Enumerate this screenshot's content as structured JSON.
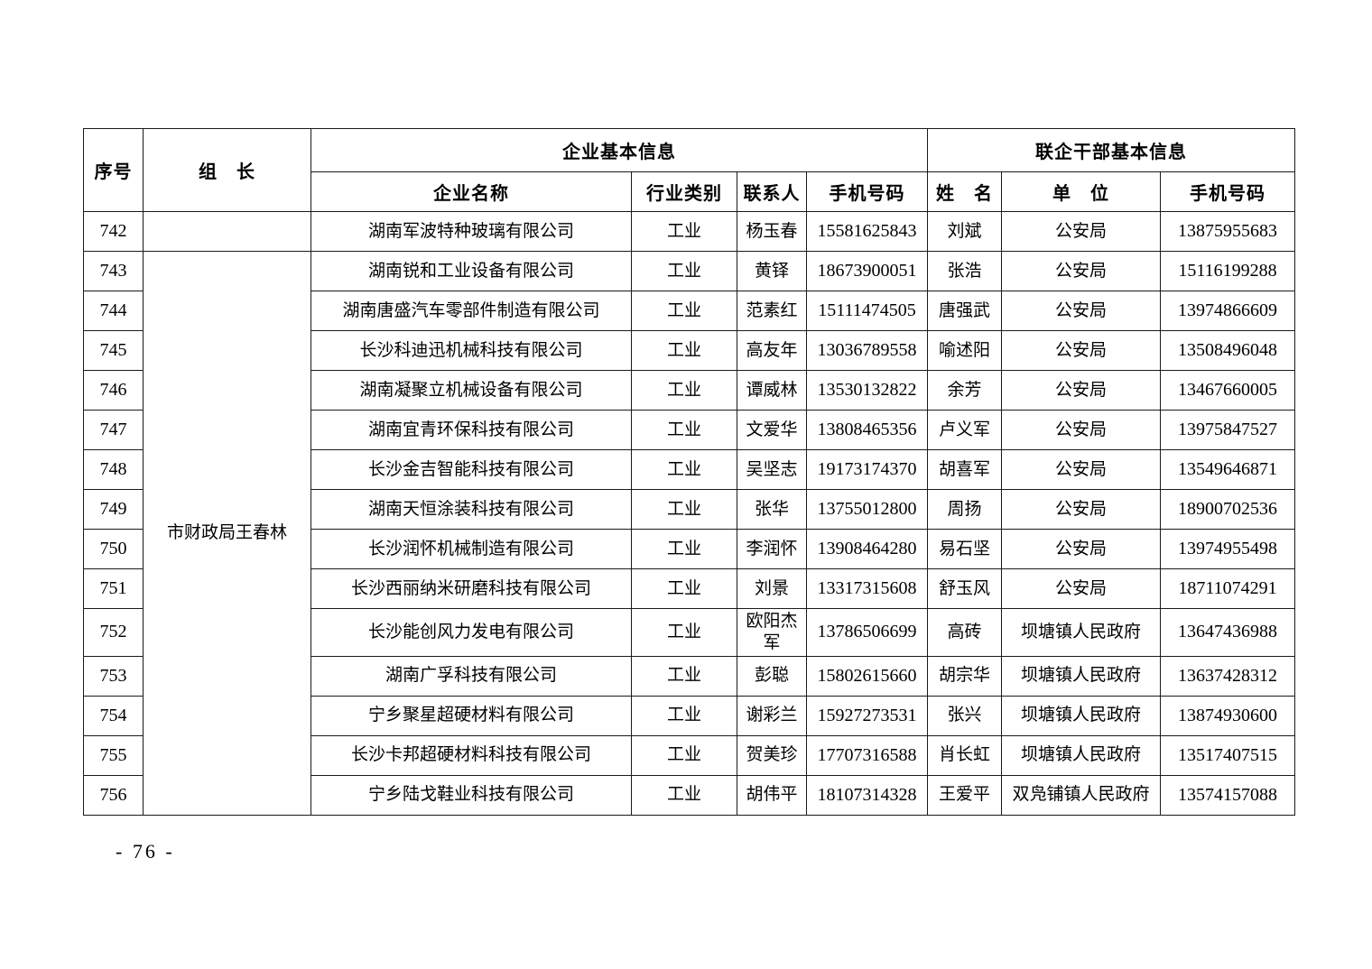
{
  "colors": {
    "background": "#ffffff",
    "text": "#000000",
    "table_border": "#1a1a1a"
  },
  "footer": {
    "page_number_label": "- 76 -"
  },
  "table": {
    "header": {
      "seq": "序号",
      "leader": "组　长",
      "enterprise_group": "企业基本信息",
      "cadre_group": "联企干部基本信息",
      "company": "企业名称",
      "industry": "行业类别",
      "contact": "联系人",
      "phone": "手机号码",
      "cadre_name": "姓　名",
      "cadre_unit": "单　位",
      "cadre_phone": "手机号码"
    },
    "leader_group": {
      "label": "市财政局王春林",
      "first_row_seq": "743",
      "last_row_seq": "756"
    },
    "rows": [
      {
        "seq": "742",
        "leader": "",
        "company": "湖南军波特种玻璃有限公司",
        "industry": "工业",
        "contact": "杨玉春",
        "phone": "15581625843",
        "cadre": "刘斌",
        "unit": "公安局",
        "cadre_phone": "13875955683"
      },
      {
        "seq": "743",
        "company": "湖南锐和工业设备有限公司",
        "industry": "工业",
        "contact": "黄铎",
        "phone": "18673900051",
        "cadre": "张浩",
        "unit": "公安局",
        "cadre_phone": "15116199288"
      },
      {
        "seq": "744",
        "company": "湖南唐盛汽车零部件制造有限公司",
        "industry": "工业",
        "contact": "范素红",
        "phone": "15111474505",
        "cadre": "唐强武",
        "unit": "公安局",
        "cadre_phone": "13974866609"
      },
      {
        "seq": "745",
        "company": "长沙科迪迅机械科技有限公司",
        "industry": "工业",
        "contact": "高友年",
        "phone": "13036789558",
        "cadre": "喻述阳",
        "unit": "公安局",
        "cadre_phone": "13508496048"
      },
      {
        "seq": "746",
        "company": "湖南凝聚立机械设备有限公司",
        "industry": "工业",
        "contact": "谭威林",
        "phone": "13530132822",
        "cadre": "余芳",
        "unit": "公安局",
        "cadre_phone": "13467660005"
      },
      {
        "seq": "747",
        "company": "湖南宜青环保科技有限公司",
        "industry": "工业",
        "contact": "文爱华",
        "phone": "13808465356",
        "cadre": "卢义军",
        "unit": "公安局",
        "cadre_phone": "13975847527"
      },
      {
        "seq": "748",
        "company": "长沙金吉智能科技有限公司",
        "industry": "工业",
        "contact": "吴坚志",
        "phone": "19173174370",
        "cadre": "胡喜军",
        "unit": "公安局",
        "cadre_phone": "13549646871"
      },
      {
        "seq": "749",
        "company": "湖南天恒涂装科技有限公司",
        "industry": "工业",
        "contact": "张华",
        "phone": "13755012800",
        "cadre": "周扬",
        "unit": "公安局",
        "cadre_phone": "18900702536"
      },
      {
        "seq": "750",
        "company": "长沙润怀机械制造有限公司",
        "industry": "工业",
        "contact": "李润怀",
        "phone": "13908464280",
        "cadre": "易石坚",
        "unit": "公安局",
        "cadre_phone": "13974955498"
      },
      {
        "seq": "751",
        "company": "长沙西丽纳米研磨科技有限公司",
        "industry": "工业",
        "contact": "刘景",
        "phone": "13317315608",
        "cadre": "舒玉风",
        "unit": "公安局",
        "cadre_phone": "18711074291"
      },
      {
        "seq": "752",
        "company": "长沙能创风力发电有限公司",
        "industry": "工业",
        "contact": "欧阳杰军",
        "phone": "13786506699",
        "cadre": "高砖",
        "unit": "坝塘镇人民政府",
        "cadre_phone": "13647436988"
      },
      {
        "seq": "753",
        "company": "湖南广孚科技有限公司",
        "industry": "工业",
        "contact": "彭聪",
        "phone": "15802615660",
        "cadre": "胡宗华",
        "unit": "坝塘镇人民政府",
        "cadre_phone": "13637428312"
      },
      {
        "seq": "754",
        "company": "宁乡聚星超硬材料有限公司",
        "industry": "工业",
        "contact": "谢彩兰",
        "phone": "15927273531",
        "cadre": "张兴",
        "unit": "坝塘镇人民政府",
        "cadre_phone": "13874930600"
      },
      {
        "seq": "755",
        "company": "长沙卡邦超硬材料科技有限公司",
        "industry": "工业",
        "contact": "贺美珍",
        "phone": "17707316588",
        "cadre": "肖长虹",
        "unit": "坝塘镇人民政府",
        "cadre_phone": "13517407515"
      },
      {
        "seq": "756",
        "company": "宁乡陆戈鞋业科技有限公司",
        "industry": "工业",
        "contact": "胡伟平",
        "phone": "18107314328",
        "cadre": "王爱平",
        "unit": "双凫铺镇人民政府",
        "cadre_phone": "13574157088"
      }
    ]
  }
}
